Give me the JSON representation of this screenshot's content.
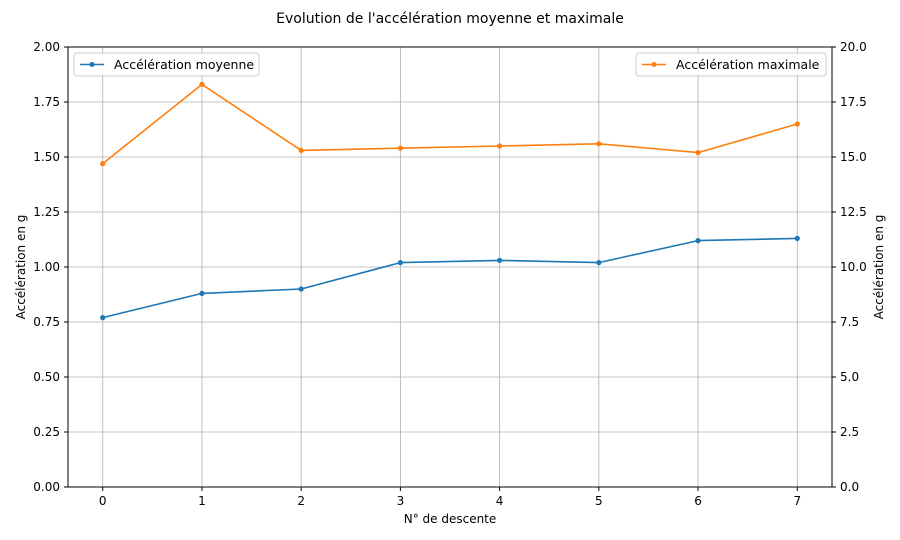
{
  "chart_data": {
    "type": "line",
    "title": "Evolution de l'accélération moyenne et maximale",
    "xlabel": "N° de descente",
    "ylabel_left": "Accélération en g",
    "ylabel_right": "Accélération en g",
    "x": [
      0,
      1,
      2,
      3,
      4,
      5,
      6,
      7
    ],
    "xlim": [
      -0.35,
      7.35
    ],
    "ylim_left": [
      0,
      2
    ],
    "ylim_right": [
      0,
      20
    ],
    "yticks_left": [
      "0.00",
      "0.25",
      "0.50",
      "0.75",
      "1.00",
      "1.25",
      "1.50",
      "1.75",
      "2.00"
    ],
    "yticks_right": [
      "0.0",
      "2.5",
      "5.0",
      "7.5",
      "10.0",
      "12.5",
      "15.0",
      "17.5",
      "20.0"
    ],
    "grid": true,
    "series": [
      {
        "name": "Accélération moyenne",
        "axis": "left",
        "color": "#1f77b4",
        "values": [
          0.77,
          0.88,
          0.9,
          1.02,
          1.03,
          1.02,
          1.12,
          1.13
        ],
        "legend_position": "top-left"
      },
      {
        "name": "Accélération maximale",
        "axis": "right",
        "color": "#ff7f0e",
        "values": [
          14.7,
          18.3,
          15.3,
          15.4,
          15.5,
          15.6,
          15.2,
          16.5
        ],
        "legend_position": "top-right"
      }
    ]
  }
}
